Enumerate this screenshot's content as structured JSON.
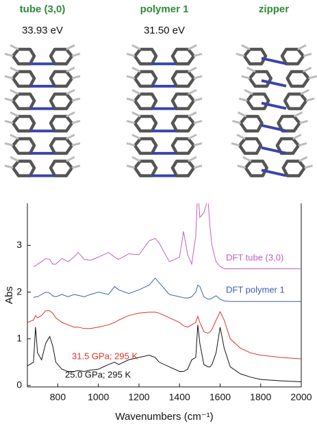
{
  "structures": [
    {
      "name": "tube (3,0)",
      "energy": "33.93 eV"
    },
    {
      "name": "polymer 1",
      "energy": "31.50 eV"
    },
    {
      "name": "zipper"
    }
  ],
  "chart_data": {
    "type": "line",
    "xlabel": "Wavenumbers (cm⁻¹)",
    "ylabel": "Abs",
    "xlim": [
      650,
      2000
    ],
    "ylim": [
      -0.03,
      3.9
    ],
    "xticks": [
      800,
      1000,
      1200,
      1400,
      1600,
      1800,
      2000
    ],
    "yticks": [
      0,
      1,
      2,
      3
    ],
    "x": [
      650,
      680,
      690,
      700,
      720,
      740,
      760,
      775,
      790,
      820,
      850,
      880,
      900,
      930,
      960,
      1000,
      1050,
      1080,
      1100,
      1150,
      1200,
      1250,
      1280,
      1300,
      1350,
      1400,
      1420,
      1440,
      1460,
      1480,
      1490,
      1500,
      1520,
      1540,
      1550,
      1560,
      1580,
      1600,
      1620,
      1650,
      1700,
      1750,
      1800,
      1900,
      2000
    ],
    "series": [
      {
        "name": "25.0 GPa; 295 K",
        "color": "#111111",
        "values": [
          0.42,
          0.5,
          1.25,
          0.7,
          0.55,
          0.9,
          1.05,
          0.85,
          0.5,
          0.35,
          0.3,
          0.3,
          0.32,
          0.3,
          0.33,
          0.35,
          0.45,
          0.5,
          0.45,
          0.55,
          0.6,
          0.65,
          0.6,
          0.5,
          0.4,
          0.3,
          0.3,
          0.35,
          0.55,
          0.6,
          1.3,
          0.9,
          0.45,
          0.4,
          0.4,
          0.45,
          0.7,
          1.25,
          0.8,
          0.4,
          0.25,
          0.18,
          0.13,
          0.1,
          0.08
        ]
      },
      {
        "name": "31.5 GPa; 295 K",
        "color": "#e0302a",
        "values": [
          1.35,
          1.4,
          1.5,
          1.45,
          1.5,
          1.6,
          1.6,
          1.55,
          1.45,
          1.35,
          1.3,
          1.25,
          1.25,
          1.22,
          1.22,
          1.25,
          1.3,
          1.35,
          1.4,
          1.5,
          1.55,
          1.57,
          1.57,
          1.55,
          1.45,
          1.35,
          1.28,
          1.25,
          1.3,
          1.35,
          1.48,
          1.35,
          1.15,
          1.12,
          1.15,
          1.2,
          1.4,
          1.58,
          1.4,
          1.0,
          0.8,
          0.7,
          0.65,
          0.6,
          0.57
        ]
      },
      {
        "name": "DFT polymer 1",
        "color": "#3a5fb0",
        "values": [
          null,
          1.88,
          1.9,
          1.9,
          1.95,
          2.0,
          1.98,
          1.92,
          1.9,
          1.95,
          1.9,
          1.95,
          1.93,
          1.9,
          1.95,
          2.0,
          1.95,
          2.12,
          2.05,
          1.97,
          2.05,
          2.15,
          2.3,
          2.2,
          1.95,
          1.9,
          1.88,
          1.87,
          1.9,
          2.0,
          2.15,
          2.12,
          1.9,
          1.85,
          1.85,
          1.87,
          1.92,
          1.85,
          1.81,
          1.8,
          1.8,
          1.8,
          1.8,
          1.8,
          1.8
        ]
      },
      {
        "name": "DFT tube (3,0)",
        "color": "#c060c0",
        "values": [
          null,
          2.55,
          2.56,
          2.6,
          2.65,
          2.72,
          2.7,
          2.6,
          2.6,
          2.72,
          2.65,
          2.75,
          2.85,
          2.7,
          2.68,
          2.75,
          2.85,
          2.75,
          2.7,
          2.82,
          2.8,
          3.1,
          3.15,
          3.05,
          2.65,
          2.75,
          3.3,
          2.8,
          2.6,
          3.2,
          4.2,
          3.6,
          3.7,
          4.0,
          3.4,
          3.0,
          2.65,
          2.55,
          2.5,
          2.5,
          2.5,
          2.5,
          2.5,
          2.5,
          2.5
        ]
      }
    ]
  }
}
